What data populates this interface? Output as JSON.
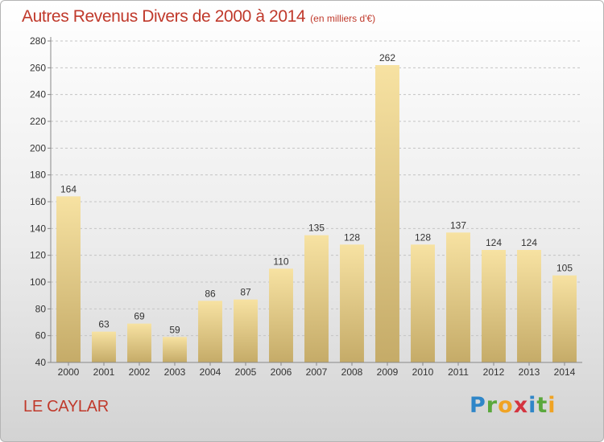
{
  "title": "Autres Revenus Divers de 2000 à 2014",
  "subtitle": "(en milliers d'€)",
  "location": "LE CAYLAR",
  "brand": {
    "text": "Proxiti",
    "colors": [
      "#2f86c8",
      "#5aa83c",
      "#f0a323",
      "#d4343f",
      "#2f86c8",
      "#5aa83c",
      "#f0a323"
    ]
  },
  "chart_data": {
    "type": "bar",
    "title": "Autres Revenus Divers de 2000 à 2014",
    "subtitle": "(en milliers d'€)",
    "xlabel": "",
    "ylabel": "",
    "categories": [
      "2000",
      "2001",
      "2002",
      "2003",
      "2004",
      "2005",
      "2006",
      "2007",
      "2008",
      "2009",
      "2010",
      "2011",
      "2012",
      "2013",
      "2014"
    ],
    "values": [
      164,
      63,
      69,
      59,
      86,
      87,
      110,
      135,
      128,
      262,
      128,
      137,
      124,
      124,
      105
    ],
    "ylim": [
      40,
      280
    ],
    "yticks": [
      40,
      60,
      80,
      100,
      120,
      140,
      160,
      180,
      200,
      220,
      240,
      260,
      280
    ],
    "grid": true,
    "legend": "none",
    "colors": {
      "bar_top": "#f7e2a2",
      "bar_bottom": "#c5ab68",
      "grid": "#c4c4c4",
      "axis": "#888888",
      "text": "#333333",
      "title": "#c0392b"
    }
  }
}
